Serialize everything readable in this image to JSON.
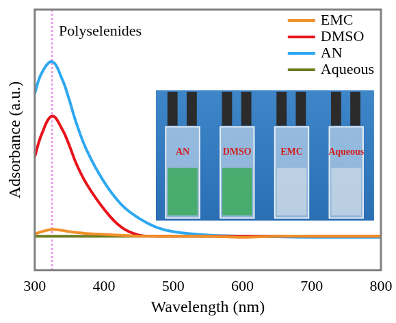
{
  "chart_data": {
    "type": "line",
    "x_label": "Wavelength (nm)",
    "y_label": "Adsorbance (a.u.)",
    "x": [
      300,
      310,
      325,
      340,
      350,
      360,
      375,
      400,
      425,
      450,
      475,
      500,
      550,
      600,
      650,
      700,
      750,
      800
    ],
    "series": [
      {
        "name": "EMC",
        "color": "#f0902a",
        "values": [
          0.01,
          0.02,
          0.03,
          0.025,
          0.02,
          0.016,
          0.012,
          0.008,
          0.004,
          0.0,
          0.0,
          0.0,
          0.0,
          -0.005,
          0.0,
          0.0,
          0.0,
          0.0
        ]
      },
      {
        "name": "DMSO",
        "color": "#e8141c",
        "values": [
          0.35,
          0.45,
          0.53,
          0.47,
          0.4,
          0.32,
          0.23,
          0.12,
          0.04,
          0.005,
          0.0,
          0.0,
          0.0,
          0.0,
          0.0,
          0.0,
          0.0,
          0.0
        ]
      },
      {
        "name": "AN",
        "color": "#2ea8f0",
        "values": [
          0.63,
          0.72,
          0.77,
          0.69,
          0.6,
          0.5,
          0.38,
          0.24,
          0.14,
          0.08,
          0.04,
          0.02,
          0.005,
          0.0,
          -0.003,
          -0.005,
          -0.005,
          -0.005
        ]
      },
      {
        "name": "Aqueous",
        "color": "#6b7a1e",
        "values": [
          0.0,
          0.0,
          0.0,
          0.0,
          0.0,
          0.0,
          0.0,
          0.0,
          0.0,
          0.0,
          0.0,
          0.0,
          0.0,
          0.0,
          0.0,
          0.0,
          0.0,
          0.0
        ]
      }
    ],
    "xlim": [
      300,
      800
    ],
    "xticks": [
      300,
      400,
      500,
      600,
      700,
      800
    ],
    "ylim": [
      -0.15,
      1
    ],
    "tick_labels": "x",
    "grid": false,
    "legend": "upper right",
    "annotations": [
      {
        "text": "Polyselenides",
        "x": 325
      }
    ],
    "inset_labels": [
      "AN",
      "DMSO",
      "EMC",
      "Aqueous"
    ]
  }
}
